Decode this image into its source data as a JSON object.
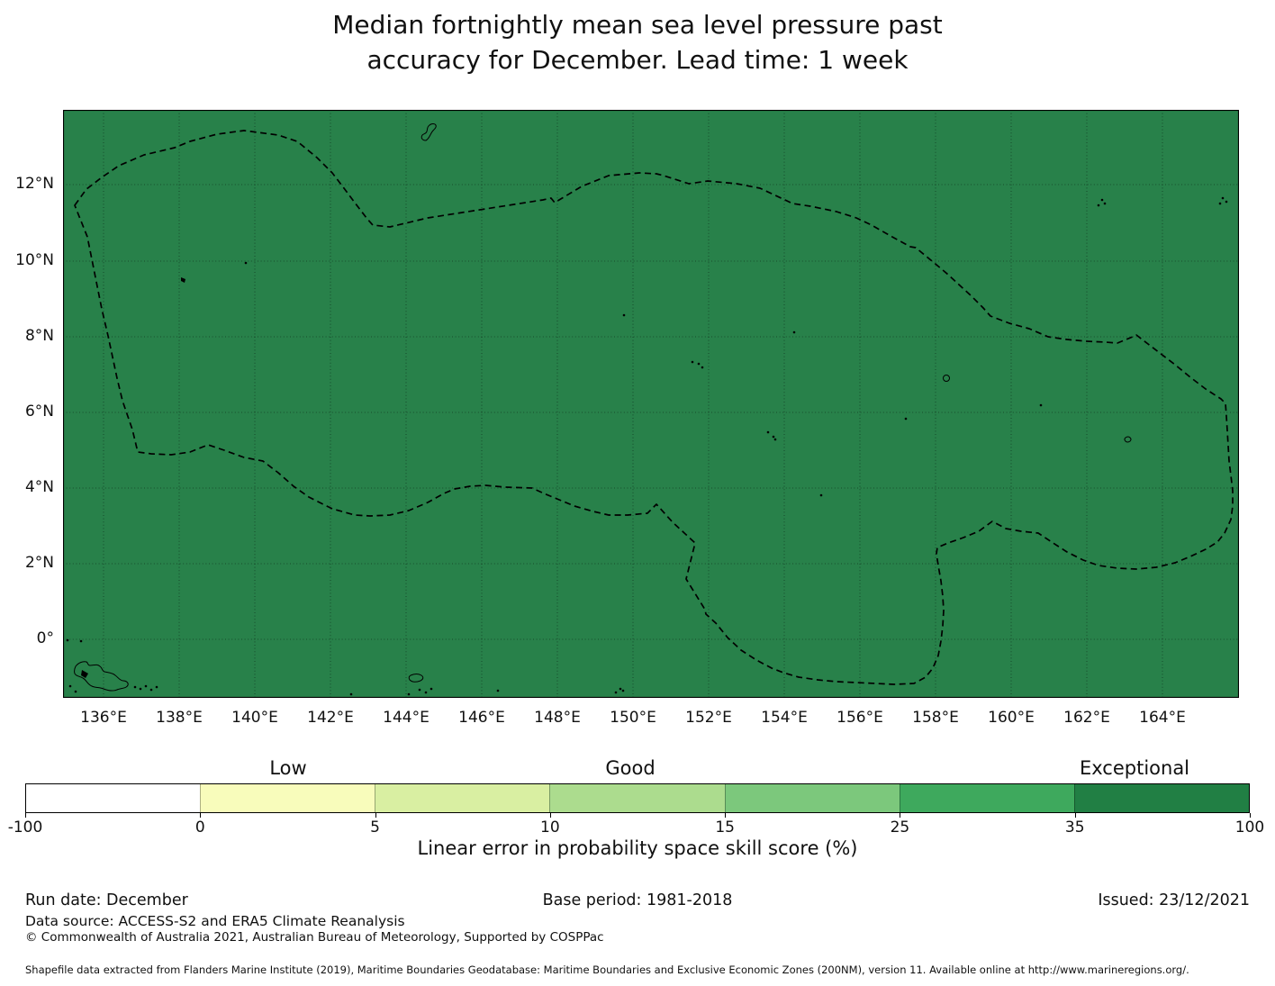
{
  "title": {
    "line1": "Median fortnightly mean sea level pressure past",
    "line2": "accuracy for December. Lead time: 1 week"
  },
  "map": {
    "fill_color": "#28814a",
    "x_tick_labels": [
      "136°E",
      "138°E",
      "140°E",
      "142°E",
      "144°E",
      "146°E",
      "148°E",
      "150°E",
      "152°E",
      "154°E",
      "156°E",
      "158°E",
      "160°E",
      "162°E",
      "164°E"
    ],
    "y_tick_labels": [
      "12°N",
      "10°N",
      "8°N",
      "6°N",
      "4°N",
      "2°N",
      "0°"
    ],
    "boundary_style": "dashed"
  },
  "colorbar": {
    "categories": [
      {
        "label": "Low"
      },
      {
        "label": "Good"
      },
      {
        "label": "Exceptional"
      }
    ],
    "tick_labels": [
      "-100",
      "0",
      "5",
      "10",
      "15",
      "25",
      "35",
      "100"
    ],
    "segment_colors": [
      "#ffffff",
      "#f8fcbb",
      "#d9efa2",
      "#acdc8e",
      "#7cc87c",
      "#3ea95d",
      "#217f44"
    ],
    "axis_label": "Linear error in probability space skill score (%)"
  },
  "footer": {
    "run_date": "Run date: December",
    "base_period": "Base period: 1981-2018",
    "issued": "Issued: 23/12/2021",
    "data_source": "Data source: ACCESS-S2 and ERA5 Climate Reanalysis",
    "copyright": "© Commonwealth of Australia 2021, Australian Bureau of Meteorology, Supported by COSPPac",
    "shapefile": "Shapefile data extracted from Flanders Marine Institute (2019), Maritime Boundaries Geodatabase: Maritime Boundaries and Exclusive Economic Zones (200NM), version 11. Available online at http://www.marineregions.org/."
  },
  "chart_data": {
    "type": "heatmap",
    "title": "Median fortnightly mean sea level pressure past accuracy for December. Lead time: 1 week",
    "x_ticks": [
      "136°E",
      "138°E",
      "140°E",
      "142°E",
      "144°E",
      "146°E",
      "148°E",
      "150°E",
      "152°E",
      "154°E",
      "156°E",
      "158°E",
      "160°E",
      "162°E",
      "164°E"
    ],
    "y_ticks": [
      "12°N",
      "10°N",
      "8°N",
      "6°N",
      "4°N",
      "2°N",
      "0°"
    ],
    "x_range_deg_east": [
      134.9,
      166.1
    ],
    "y_range_deg_north": [
      -1.6,
      14.0
    ],
    "field": "uniform fill over whole shown ocean domain, value in top colour bin (35 to 100, Exceptional)",
    "overlay": "dashed exclusive economic zone boundary polygon and small island coastlines",
    "grid": true,
    "legend_position": "bottom",
    "colorbar": {
      "label": "Linear error in probability space skill score (%)",
      "bin_edges": [
        -100,
        0,
        5,
        10,
        15,
        25,
        35,
        100
      ],
      "bin_colors": [
        "#ffffff",
        "#f8fcbb",
        "#d9efa2",
        "#acdc8e",
        "#7cc87c",
        "#3ea95d",
        "#217f44"
      ],
      "categories": [
        {
          "label": "Low",
          "above_bin": "0-5"
        },
        {
          "label": "Good",
          "above_bin": "10-15"
        },
        {
          "label": "Exceptional",
          "above_bin": "35-100"
        }
      ]
    }
  }
}
